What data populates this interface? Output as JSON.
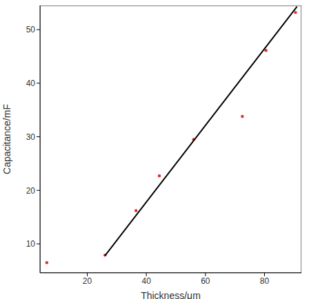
{
  "chart_data": {
    "type": "scatter",
    "x_label": "Thickness/μm",
    "y_label": "Capacitance/mF",
    "xlim": [
      4,
      92.5
    ],
    "ylim": [
      4.6,
      54.5
    ],
    "xticks": [
      20,
      40,
      60,
      80
    ],
    "yticks": [
      10,
      20,
      30,
      40,
      50
    ],
    "grid": false,
    "series": [
      {
        "type": "scatter",
        "color": "#e0302a",
        "marker": "circle",
        "x": [
          6.3,
          26,
          36.5,
          44.4,
          56,
          72.5,
          80.5,
          90.5
        ],
        "values": [
          6.5,
          7.9,
          16.2,
          22.7,
          29.5,
          33.8,
          46.1,
          53.2
        ]
      },
      {
        "type": "line",
        "color": "#000000",
        "line_style": "solid",
        "x": [
          26,
          91
        ],
        "values": [
          7.8,
          54.3
        ]
      }
    ]
  }
}
